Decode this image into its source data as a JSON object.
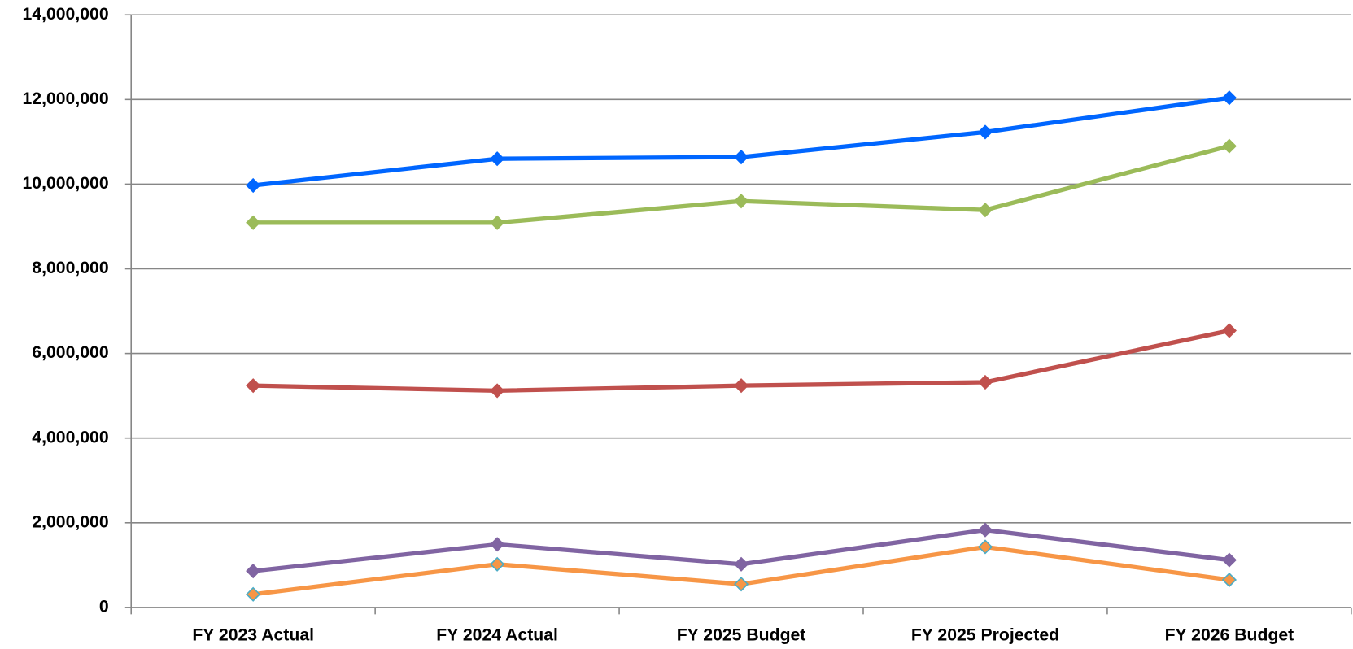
{
  "chart_data": {
    "type": "line",
    "categories": [
      "FY 2023 Actual",
      "FY 2024 Actual",
      "FY 2025 Budget",
      "FY 2025 Projected",
      "FY 2026 Budget"
    ],
    "series": [
      {
        "color": "#0066ff",
        "values": [
          9970000,
          10600000,
          10640000,
          11230000,
          12040000
        ]
      },
      {
        "color": "#9bbb59",
        "values": [
          9090000,
          9090000,
          9600000,
          9390000,
          10900000
        ]
      },
      {
        "color": "#c0504d",
        "values": [
          5240000,
          5120000,
          5240000,
          5320000,
          6540000
        ]
      },
      {
        "color": "#8064a2",
        "values": [
          860000,
          1490000,
          1020000,
          1830000,
          1120000
        ]
      },
      {
        "color": "#f79646",
        "marker_edge": "#4bacc6",
        "values": [
          310000,
          1020000,
          550000,
          1430000,
          650000
        ]
      }
    ],
    "ylim": [
      0,
      14000000
    ],
    "yticks": [
      0,
      {
        "value": 2000000,
        "label": "2,000,000"
      },
      {
        "value": 4000000,
        "label": "4,000,000"
      },
      {
        "value": 6000000,
        "label": "6,000,000"
      },
      {
        "value": 8000000,
        "label": "8,000,000"
      },
      {
        "value": 10000000,
        "label": "10,000,000"
      },
      {
        "value": 12000000,
        "label": "12,000,000"
      },
      {
        "value": 14000000,
        "label": "14,000,000"
      }
    ],
    "grid": true
  }
}
